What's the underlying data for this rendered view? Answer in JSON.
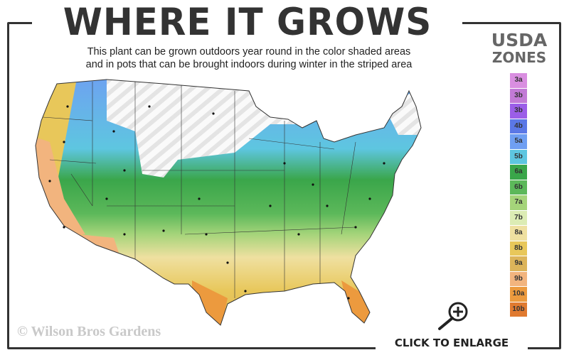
{
  "header": {
    "title": "WHERE IT GROWS",
    "subtitle_line1": "This plant can be grown outdoors year round in the color shaded areas",
    "subtitle_line2": "and in pots that can be brought indoors during winter in the striped area"
  },
  "legend": {
    "title_line1": "USDA",
    "title_line2": "ZONES",
    "zones": [
      {
        "label": "3a",
        "color": "#d98ee0"
      },
      {
        "label": "3b",
        "color": "#c27ad6"
      },
      {
        "label": "3b",
        "color": "#9b5ee8"
      },
      {
        "label": "4b",
        "color": "#5b78e6"
      },
      {
        "label": "5a",
        "color": "#6f9ff2"
      },
      {
        "label": "5b",
        "color": "#5ec6e0"
      },
      {
        "label": "6a",
        "color": "#3aa64a"
      },
      {
        "label": "6b",
        "color": "#5cb85a"
      },
      {
        "label": "7a",
        "color": "#a5d47a"
      },
      {
        "label": "7b",
        "color": "#dcecb4"
      },
      {
        "label": "8a",
        "color": "#efe0a0"
      },
      {
        "label": "8b",
        "color": "#e8c75a"
      },
      {
        "label": "9a",
        "color": "#dcb45a"
      },
      {
        "label": "9b",
        "color": "#f2b47e"
      },
      {
        "label": "10a",
        "color": "#ec9a3e"
      },
      {
        "label": "10b",
        "color": "#e07a30"
      }
    ]
  },
  "map": {
    "striped_area": "indoor pots in winter"
  },
  "footer": {
    "copyright": "© Wilson Bros Gardens",
    "enlarge_label": "CLICK TO ENLARGE",
    "enlarge_icon": "magnifier-plus-icon"
  }
}
